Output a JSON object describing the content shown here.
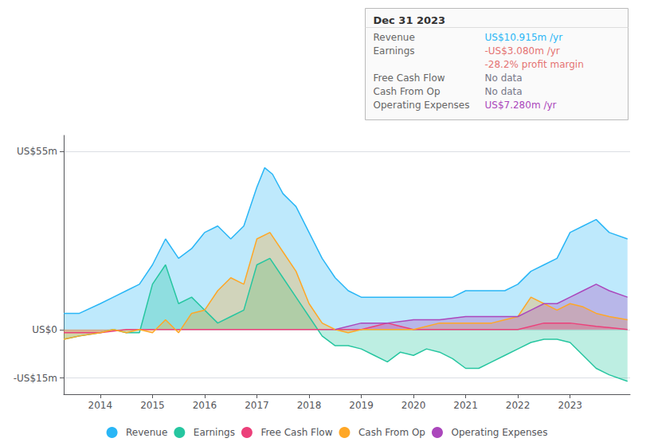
{
  "chart_data": {
    "type": "area",
    "xlim": [
      2013.3,
      2024.15
    ],
    "xticks": [
      2014,
      2015,
      2016,
      2017,
      2018,
      2019,
      2020,
      2021,
      2022,
      2023
    ],
    "ylim": [
      -20,
      60
    ],
    "yticks": [
      {
        "value": 55,
        "label": "US$55m"
      },
      {
        "value": 0,
        "label": "US$0"
      },
      {
        "value": -15,
        "label": "-US$15m"
      }
    ],
    "grid": true,
    "legend": "bottom",
    "series": [
      {
        "name": "Revenue",
        "color": "#29b6f6",
        "x": [
          2013.3,
          2013.6,
          2014.0,
          2014.25,
          2014.5,
          2014.75,
          2015.0,
          2015.25,
          2015.5,
          2015.75,
          2016.0,
          2016.25,
          2016.5,
          2016.75,
          2017.0,
          2017.15,
          2017.3,
          2017.5,
          2017.75,
          2018.0,
          2018.25,
          2018.5,
          2018.75,
          2019.0,
          2019.25,
          2019.5,
          2019.75,
          2020.0,
          2020.25,
          2020.5,
          2020.75,
          2021.0,
          2021.25,
          2021.5,
          2021.75,
          2022.0,
          2022.25,
          2022.5,
          2022.75,
          2023.0,
          2023.25,
          2023.5,
          2023.75,
          2024.1
        ],
        "values": [
          5,
          5,
          8,
          10,
          12,
          14,
          20,
          28,
          22,
          25,
          30,
          32,
          28,
          32,
          44,
          50,
          48,
          42,
          38,
          30,
          22,
          16,
          12,
          10,
          10,
          10,
          10,
          10,
          10,
          10,
          10,
          12,
          12,
          12,
          12,
          14,
          18,
          20,
          22,
          30,
          32,
          34,
          30,
          28
        ]
      },
      {
        "name": "Earnings",
        "color": "#26c6a0",
        "x": [
          2013.3,
          2013.6,
          2014.0,
          2014.25,
          2014.5,
          2014.75,
          2015.0,
          2015.25,
          2015.5,
          2015.75,
          2016.0,
          2016.25,
          2016.5,
          2016.75,
          2017.0,
          2017.25,
          2017.5,
          2017.75,
          2018.0,
          2018.25,
          2018.5,
          2018.75,
          2019.0,
          2019.25,
          2019.5,
          2019.75,
          2020.0,
          2020.25,
          2020.5,
          2020.75,
          2021.0,
          2021.25,
          2021.5,
          2021.75,
          2022.0,
          2022.25,
          2022.5,
          2022.75,
          2023.0,
          2023.25,
          2023.5,
          2023.75,
          2024.1
        ],
        "values": [
          -3,
          -2,
          -1,
          0,
          -1,
          -1,
          14,
          20,
          8,
          10,
          6,
          2,
          4,
          6,
          20,
          22,
          16,
          10,
          4,
          -2,
          -5,
          -5,
          -6,
          -8,
          -10,
          -7,
          -8,
          -6,
          -7,
          -9,
          -12,
          -12,
          -10,
          -8,
          -6,
          -4,
          -3,
          -3,
          -4,
          -8,
          -12,
          -14,
          -16
        ]
      },
      {
        "name": "Free Cash Flow",
        "color": "#ec407a",
        "x": [
          2013.3,
          2014.0,
          2014.5,
          2015.0,
          2015.5,
          2016.0,
          2016.5,
          2017.0,
          2017.5,
          2018.0,
          2018.5,
          2019.0,
          2019.25,
          2019.5,
          2019.75,
          2020.0,
          2020.5,
          2021.0,
          2021.5,
          2022.0,
          2022.5,
          2023.0,
          2023.5,
          2024.1
        ],
        "values": [
          -1,
          -1,
          0,
          0,
          0,
          0,
          0,
          0,
          0,
          0,
          0,
          0,
          1,
          2,
          1,
          0,
          0,
          0,
          0,
          0,
          2,
          2,
          1,
          0
        ]
      },
      {
        "name": "Cash From Op",
        "color": "#ffa726",
        "x": [
          2013.3,
          2013.6,
          2014.0,
          2014.25,
          2014.5,
          2014.75,
          2015.0,
          2015.25,
          2015.5,
          2015.75,
          2016.0,
          2016.25,
          2016.5,
          2016.75,
          2017.0,
          2017.25,
          2017.5,
          2017.75,
          2018.0,
          2018.25,
          2018.5,
          2018.75,
          2019.0,
          2019.25,
          2019.5,
          2019.75,
          2020.0,
          2020.25,
          2020.5,
          2020.75,
          2021.0,
          2021.25,
          2021.5,
          2021.75,
          2022.0,
          2022.25,
          2022.5,
          2022.75,
          2023.0,
          2023.25,
          2023.5,
          2023.75,
          2024.1
        ],
        "values": [
          -3,
          -2,
          -1,
          0,
          -1,
          0,
          -1,
          3,
          -1,
          5,
          6,
          12,
          16,
          14,
          28,
          30,
          24,
          18,
          8,
          2,
          0,
          -1,
          0,
          0,
          0,
          0,
          0,
          1,
          2,
          2,
          2,
          2,
          2,
          3,
          4,
          10,
          8,
          6,
          8,
          7,
          5,
          4,
          3
        ]
      },
      {
        "name": "Operating Expenses",
        "color": "#ab47bc",
        "x": [
          2018.5,
          2019.0,
          2019.5,
          2020.0,
          2020.5,
          2021.0,
          2021.5,
          2022.0,
          2022.25,
          2022.5,
          2022.75,
          2023.0,
          2023.25,
          2023.5,
          2023.75,
          2024.1
        ],
        "values": [
          0,
          2,
          2,
          3,
          3,
          4,
          4,
          4,
          6,
          8,
          8,
          10,
          12,
          14,
          12,
          10
        ]
      }
    ],
    "annotations": {
      "title": "Dec 31 2023",
      "rows": [
        {
          "label": "Revenue",
          "value": "US$10.915m /yr",
          "color": "#29b6f6"
        },
        {
          "label": "Earnings",
          "value": "-US$3.080m /yr",
          "color": "#e57373"
        },
        {
          "value": "-28.2% profit margin",
          "color": "#e57373"
        },
        {
          "label": "Free Cash Flow",
          "value": "No data",
          "color": "#777788"
        },
        {
          "label": "Cash From Op",
          "value": "No data",
          "color": "#777788"
        },
        {
          "label": "Operating Expenses",
          "value": "US$7.280m /yr",
          "color": "#ab47bc"
        }
      ]
    }
  }
}
